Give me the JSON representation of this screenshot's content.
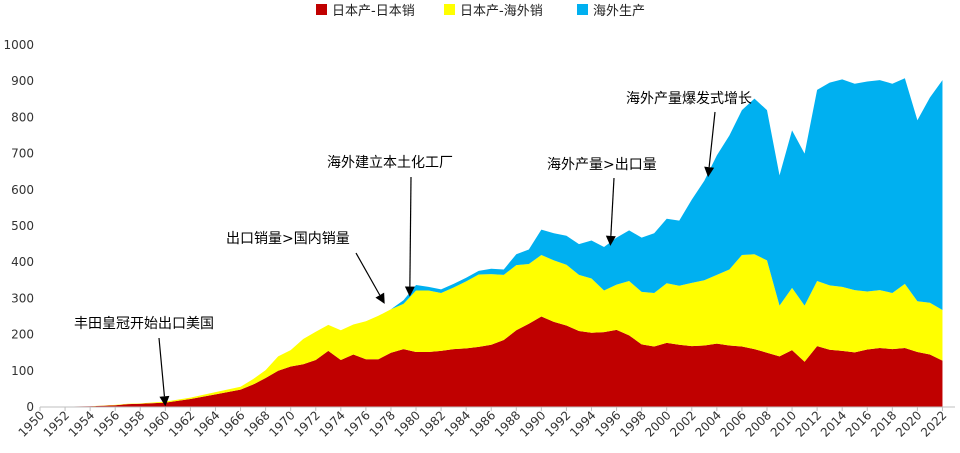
{
  "chart_data": {
    "type": "area",
    "stacked": true,
    "ylim": [
      0,
      1000
    ],
    "yticks": [
      0,
      100,
      200,
      300,
      400,
      500,
      600,
      700,
      800,
      900,
      1000
    ],
    "xlim": [
      1950,
      2023
    ],
    "xticks": [
      1950,
      1952,
      1954,
      1956,
      1958,
      1960,
      1962,
      1964,
      1966,
      1968,
      1970,
      1972,
      1974,
      1976,
      1978,
      1980,
      1982,
      1984,
      1986,
      1988,
      1990,
      1992,
      1994,
      1996,
      1998,
      2000,
      2002,
      2004,
      2006,
      2008,
      2010,
      2012,
      2014,
      2016,
      2018,
      2020,
      2022
    ],
    "legend_position": "top-center",
    "grid": false,
    "series": [
      {
        "name": "日本产-日本销",
        "color": "#C00000",
        "points": [
          [
            1950,
            0
          ],
          [
            1952,
            1
          ],
          [
            1954,
            2
          ],
          [
            1956,
            5
          ],
          [
            1957,
            8
          ],
          [
            1958,
            9
          ],
          [
            1960,
            12
          ],
          [
            1962,
            22
          ],
          [
            1964,
            35
          ],
          [
            1966,
            48
          ],
          [
            1967,
            62
          ],
          [
            1968,
            80
          ],
          [
            1969,
            100
          ],
          [
            1970,
            112
          ],
          [
            1971,
            118
          ],
          [
            1972,
            130
          ],
          [
            1973,
            155
          ],
          [
            1974,
            130
          ],
          [
            1975,
            145
          ],
          [
            1976,
            132
          ],
          [
            1977,
            132
          ],
          [
            1978,
            150
          ],
          [
            1979,
            160
          ],
          [
            1980,
            152
          ],
          [
            1981,
            152
          ],
          [
            1982,
            155
          ],
          [
            1983,
            160
          ],
          [
            1984,
            162
          ],
          [
            1985,
            166
          ],
          [
            1986,
            172
          ],
          [
            1987,
            185
          ],
          [
            1988,
            212
          ],
          [
            1989,
            230
          ],
          [
            1990,
            250
          ],
          [
            1991,
            235
          ],
          [
            1992,
            225
          ],
          [
            1993,
            210
          ],
          [
            1994,
            205
          ],
          [
            1995,
            207
          ],
          [
            1996,
            213
          ],
          [
            1997,
            198
          ],
          [
            1998,
            173
          ],
          [
            1999,
            167
          ],
          [
            2000,
            177
          ],
          [
            2001,
            172
          ],
          [
            2002,
            168
          ],
          [
            2003,
            170
          ],
          [
            2004,
            175
          ],
          [
            2005,
            170
          ],
          [
            2006,
            167
          ],
          [
            2007,
            160
          ],
          [
            2008,
            150
          ],
          [
            2009,
            140
          ],
          [
            2010,
            157
          ],
          [
            2011,
            125
          ],
          [
            2012,
            168
          ],
          [
            2013,
            158
          ],
          [
            2014,
            155
          ],
          [
            2015,
            151
          ],
          [
            2016,
            159
          ],
          [
            2017,
            163
          ],
          [
            2018,
            160
          ],
          [
            2019,
            163
          ],
          [
            2020,
            152
          ],
          [
            2021,
            145
          ],
          [
            2022,
            128
          ]
        ]
      },
      {
        "name": "日本产-海外销",
        "color": "#FFFF00",
        "points": [
          [
            1950,
            0
          ],
          [
            1952,
            0
          ],
          [
            1954,
            0
          ],
          [
            1956,
            1
          ],
          [
            1958,
            1
          ],
          [
            1960,
            3
          ],
          [
            1962,
            4
          ],
          [
            1964,
            6
          ],
          [
            1966,
            8
          ],
          [
            1968,
            22
          ],
          [
            1969,
            40
          ],
          [
            1970,
            45
          ],
          [
            1971,
            70
          ],
          [
            1972,
            78
          ],
          [
            1973,
            72
          ],
          [
            1974,
            82
          ],
          [
            1975,
            83
          ],
          [
            1976,
            105
          ],
          [
            1977,
            120
          ],
          [
            1978,
            120
          ],
          [
            1979,
            125
          ],
          [
            1980,
            170
          ],
          [
            1981,
            170
          ],
          [
            1982,
            160
          ],
          [
            1983,
            170
          ],
          [
            1984,
            185
          ],
          [
            1985,
            200
          ],
          [
            1986,
            195
          ],
          [
            1987,
            180
          ],
          [
            1988,
            180
          ],
          [
            1989,
            165
          ],
          [
            1990,
            170
          ],
          [
            1991,
            170
          ],
          [
            1992,
            168
          ],
          [
            1993,
            155
          ],
          [
            1994,
            150
          ],
          [
            1995,
            115
          ],
          [
            1996,
            125
          ],
          [
            1997,
            150
          ],
          [
            1998,
            145
          ],
          [
            1999,
            148
          ],
          [
            2000,
            165
          ],
          [
            2001,
            163
          ],
          [
            2002,
            175
          ],
          [
            2003,
            180
          ],
          [
            2004,
            190
          ],
          [
            2005,
            210
          ],
          [
            2006,
            253
          ],
          [
            2007,
            262
          ],
          [
            2008,
            255
          ],
          [
            2009,
            140
          ],
          [
            2010,
            172
          ],
          [
            2011,
            155
          ],
          [
            2012,
            180
          ],
          [
            2013,
            178
          ],
          [
            2014,
            177
          ],
          [
            2015,
            172
          ],
          [
            2016,
            160
          ],
          [
            2017,
            160
          ],
          [
            2018,
            155
          ],
          [
            2019,
            177
          ],
          [
            2020,
            140
          ],
          [
            2021,
            143
          ],
          [
            2022,
            140
          ]
        ]
      },
      {
        "name": "海外生产",
        "color": "#00B0F0",
        "points": [
          [
            1950,
            0
          ],
          [
            1970,
            0
          ],
          [
            1978,
            0
          ],
          [
            1979,
            10
          ],
          [
            1980,
            15
          ],
          [
            1981,
            10
          ],
          [
            1982,
            10
          ],
          [
            1983,
            10
          ],
          [
            1984,
            10
          ],
          [
            1985,
            10
          ],
          [
            1986,
            15
          ],
          [
            1987,
            15
          ],
          [
            1988,
            30
          ],
          [
            1989,
            40
          ],
          [
            1990,
            70
          ],
          [
            1991,
            75
          ],
          [
            1992,
            80
          ],
          [
            1993,
            85
          ],
          [
            1994,
            105
          ],
          [
            1995,
            120
          ],
          [
            1996,
            130
          ],
          [
            1997,
            140
          ],
          [
            1998,
            150
          ],
          [
            1999,
            165
          ],
          [
            2000,
            178
          ],
          [
            2001,
            180
          ],
          [
            2002,
            230
          ],
          [
            2003,
            275
          ],
          [
            2004,
            330
          ],
          [
            2005,
            370
          ],
          [
            2006,
            400
          ],
          [
            2007,
            430
          ],
          [
            2008,
            415
          ],
          [
            2009,
            360
          ],
          [
            2010,
            435
          ],
          [
            2011,
            420
          ],
          [
            2012,
            528
          ],
          [
            2013,
            560
          ],
          [
            2014,
            573
          ],
          [
            2015,
            570
          ],
          [
            2016,
            580
          ],
          [
            2017,
            580
          ],
          [
            2018,
            578
          ],
          [
            2019,
            568
          ],
          [
            2020,
            500
          ],
          [
            2021,
            567
          ],
          [
            2022,
            635
          ]
        ]
      }
    ],
    "annotations": [
      {
        "text": "丰田皇冠开始出口美国",
        "target": [
          1960,
          2
        ]
      },
      {
        "text": "出口销量>国内销量",
        "target": [
          1977.5,
          285
        ]
      },
      {
        "text": "海外建立本土化工厂",
        "target": [
          1979.5,
          305
        ]
      },
      {
        "text": "海外产量>出口量",
        "target": [
          1995.5,
          445
        ]
      },
      {
        "text": "海外产量爆发式增长",
        "target": [
          2003.3,
          635
        ]
      }
    ]
  }
}
